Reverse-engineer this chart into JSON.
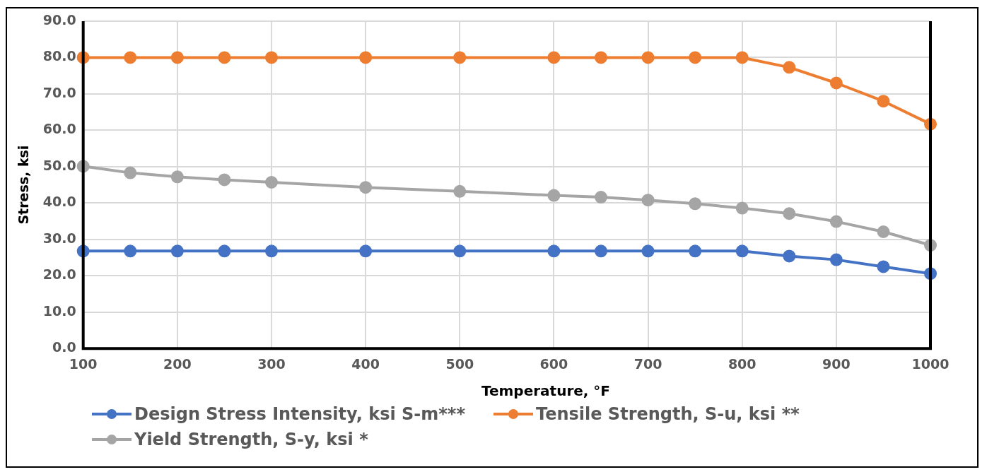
{
  "chart_data": {
    "type": "line",
    "xlabel": "Temperature, °F",
    "ylabel": "Stress, ksi",
    "x": [
      100,
      150,
      200,
      250,
      300,
      400,
      500,
      600,
      650,
      700,
      750,
      800,
      850,
      900,
      950,
      1000
    ],
    "series": [
      {
        "name": "Design Stress Intensity, ksi S-m***",
        "color": "#4472c4",
        "values": [
          26.8,
          26.8,
          26.8,
          26.8,
          26.8,
          26.8,
          26.8,
          26.8,
          26.8,
          26.8,
          26.8,
          26.8,
          25.4,
          24.4,
          22.5,
          20.6
        ]
      },
      {
        "name": "Tensile Strength, S-u, ksi **",
        "color": "#ed7d31",
        "values": [
          80,
          80,
          80,
          80,
          80,
          80,
          80,
          80,
          80,
          80,
          80,
          80,
          77.3,
          73.0,
          68.0,
          61.7
        ]
      },
      {
        "name": "Yield Strength, S-y, ksi *",
        "color": "#a5a5a5",
        "values": [
          50.1,
          48.3,
          47.2,
          46.4,
          45.7,
          44.3,
          43.2,
          42.1,
          41.6,
          40.8,
          39.8,
          38.6,
          37.1,
          34.9,
          32.1,
          28.4
        ]
      }
    ],
    "xlim": [
      100,
      1000
    ],
    "xticks": [
      100,
      200,
      300,
      400,
      500,
      600,
      700,
      800,
      900,
      1000
    ],
    "ylim": [
      0,
      90
    ],
    "yticks": [
      {
        "value": 0,
        "label": "0.0"
      },
      {
        "value": 10,
        "label": "10.0"
      },
      {
        "value": 20,
        "label": "20.0"
      },
      {
        "value": 30,
        "label": "30.0"
      },
      {
        "value": 40,
        "label": "40.0"
      },
      {
        "value": 50,
        "label": "50.0"
      },
      {
        "value": 60,
        "label": "60.0"
      },
      {
        "value": 70,
        "label": "70.0"
      },
      {
        "value": 80,
        "label": "80.0"
      },
      {
        "value": 90,
        "label": "90.0"
      }
    ],
    "grid": true,
    "legend": "bottom",
    "marker": "circle",
    "line_style": "solid"
  }
}
